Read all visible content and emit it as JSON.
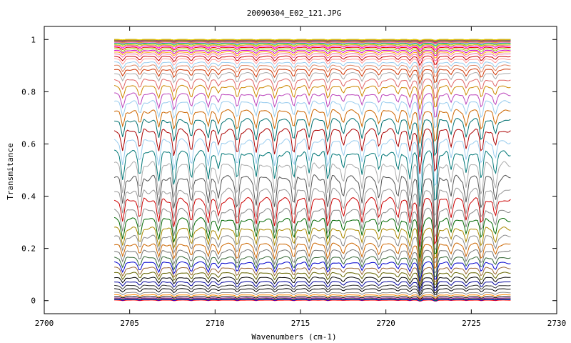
{
  "chart_data": {
    "type": "line",
    "title": "20090304_E02_121.JPG",
    "xlabel": "Wavenumbers (cm-1)",
    "ylabel": "Transmitance",
    "xlim": [
      2700,
      2730
    ],
    "ylim": [
      -0.05,
      1.05
    ],
    "x_ticks": [
      "2700",
      "2705",
      "2710",
      "2715",
      "2720",
      "2725",
      "2730"
    ],
    "y_ticks": [
      "0",
      "0.2",
      "0.4",
      "0.6",
      "0.8",
      "1"
    ],
    "x_range": [
      2704.1,
      2727.3
    ],
    "grid": false,
    "legend": "none",
    "series_count": 60,
    "absorption_lines_cm-1": [
      2704.6,
      2705.6,
      2706.7,
      2707.6,
      2708.6,
      2709.6,
      2710.2,
      2711.3,
      2712.4,
      2713.5,
      2714.6,
      2715.5,
      2716.6,
      2717.5,
      2718.6,
      2719.6,
      2720.7,
      2721.4,
      2722.0,
      2722.9,
      2723.8,
      2724.7,
      2725.6,
      2726.4
    ],
    "series_baselines": [
      0.002,
      0.004,
      0.007,
      0.01,
      0.015,
      0.022,
      0.031,
      0.045,
      0.058,
      0.072,
      0.088,
      0.106,
      0.125,
      0.145,
      0.165,
      0.19,
      0.215,
      0.245,
      0.275,
      0.31,
      0.345,
      0.385,
      0.42,
      0.47,
      0.52,
      0.565,
      0.61,
      0.65,
      0.69,
      0.725,
      0.76,
      0.79,
      0.82,
      0.845,
      0.87,
      0.885,
      0.9,
      0.912,
      0.925,
      0.935,
      0.945,
      0.952,
      0.958,
      0.964,
      0.97,
      0.975,
      0.979,
      0.983,
      0.986,
      0.989,
      0.991,
      0.993,
      0.995,
      0.996,
      0.997,
      0.998,
      0.999,
      0.9995,
      1.0,
      1.0
    ],
    "series_colors": [
      "#ff0000",
      "#0000ff",
      "#008800",
      "#aa00aa",
      "#000000",
      "#ff8800",
      "#888888",
      "#000000",
      "#333333",
      "#000099",
      "#000000",
      "#666600",
      "#996633",
      "#0000cc",
      "#336633",
      "#777777",
      "#cc6600",
      "#888888",
      "#aa8800",
      "#006600",
      "#888888",
      "#cc0000",
      "#999999",
      "#555555",
      "#aaaaaa",
      "#007777",
      "#99ccee",
      "#aa0000",
      "#007070",
      "#cc6600",
      "#99ccee",
      "#bb44bb",
      "#cc8800",
      "#e06666",
      "#aaaaaa",
      "#cc3300",
      "#dd8866",
      "#99ccee",
      "#ff9999",
      "#cc0000",
      "#ee66aa",
      "#ffaa00",
      "#cc00cc",
      "#99cc00",
      "#ee0000",
      "#ff00ff",
      "#ccaa00",
      "#aacc00",
      "#00aacc",
      "#ff66cc",
      "#cccc00",
      "#ee00ee",
      "#aa5500",
      "#00cc88",
      "#ff6600",
      "#55aa00",
      "#aa00ff",
      "#dd0088",
      "#00aa00",
      "#ffcc00"
    ]
  }
}
